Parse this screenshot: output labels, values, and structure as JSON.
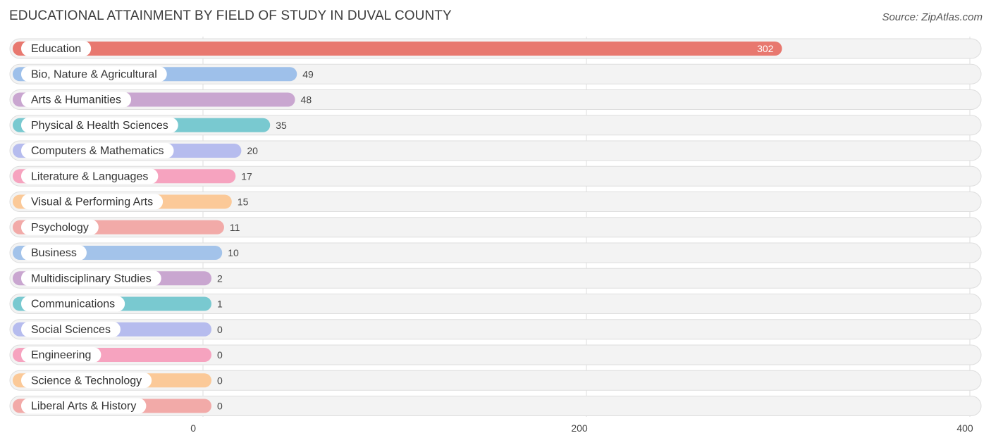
{
  "title": "EDUCATIONAL ATTAINMENT BY FIELD OF STUDY IN DUVAL COUNTY",
  "source": "Source: ZipAtlas.com",
  "chart_data": {
    "type": "bar",
    "orientation": "horizontal",
    "categories": [
      "Education",
      "Bio, Nature & Agricultural",
      "Arts & Humanities",
      "Physical & Health Sciences",
      "Computers & Mathematics",
      "Literature & Languages",
      "Visual & Performing Arts",
      "Psychology",
      "Business",
      "Multidisciplinary Studies",
      "Communications",
      "Social Sciences",
      "Engineering",
      "Science & Technology",
      "Liberal Arts & History"
    ],
    "values": [
      302,
      49,
      48,
      35,
      20,
      17,
      15,
      11,
      10,
      2,
      1,
      0,
      0,
      0,
      0
    ],
    "value_labels": [
      "302",
      "49",
      "48",
      "35",
      "20",
      "17",
      "15",
      "11",
      "10",
      "2",
      "1",
      "0",
      "0",
      "0",
      "0"
    ],
    "colors": [
      "#e8786f",
      "#9ec0ea",
      "#c9a6d0",
      "#79c9d0",
      "#b6bcee",
      "#f6a3bf",
      "#fbc998",
      "#f2aaa8",
      "#a3c3ea",
      "#c9a6d0",
      "#79c9d0",
      "#b6bcee",
      "#f6a3bf",
      "#fbc998",
      "#f2aaa8"
    ],
    "xlim": [
      0,
      400
    ],
    "xticks": [
      0,
      200,
      400
    ],
    "xtick_labels": [
      "0",
      "200",
      "400"
    ],
    "grid": true,
    "legend": "none"
  }
}
